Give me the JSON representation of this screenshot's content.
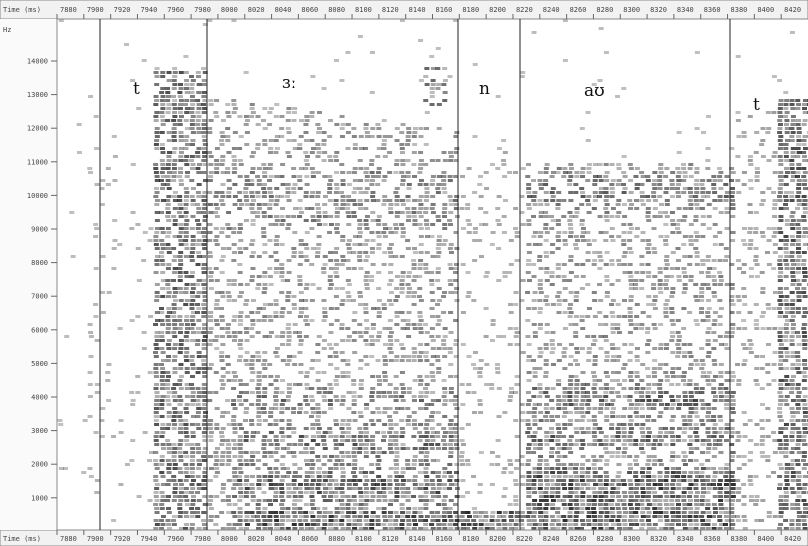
{
  "time_axis": {
    "label": "Time (ms)",
    "ticks": [
      7880,
      7900,
      7920,
      7940,
      7960,
      7980,
      8000,
      8020,
      8040,
      8060,
      8080,
      8100,
      8120,
      8140,
      8160,
      8180,
      8200,
      8220,
      8240,
      8260,
      8280,
      8300,
      8320,
      8340,
      8360,
      8380,
      8400,
      8420
    ]
  },
  "frequency_axis": {
    "unit": "Hz",
    "ticks": [
      14000,
      13000,
      12000,
      11000,
      10000,
      9000,
      8000,
      7000,
      6000,
      5000,
      4000,
      3000,
      2000,
      1000
    ]
  },
  "segments": [
    {
      "label": "t"
    },
    {
      "label": "ɜː"
    },
    {
      "label": "n"
    },
    {
      "label": "aʊ"
    },
    {
      "label": "t"
    }
  ]
}
